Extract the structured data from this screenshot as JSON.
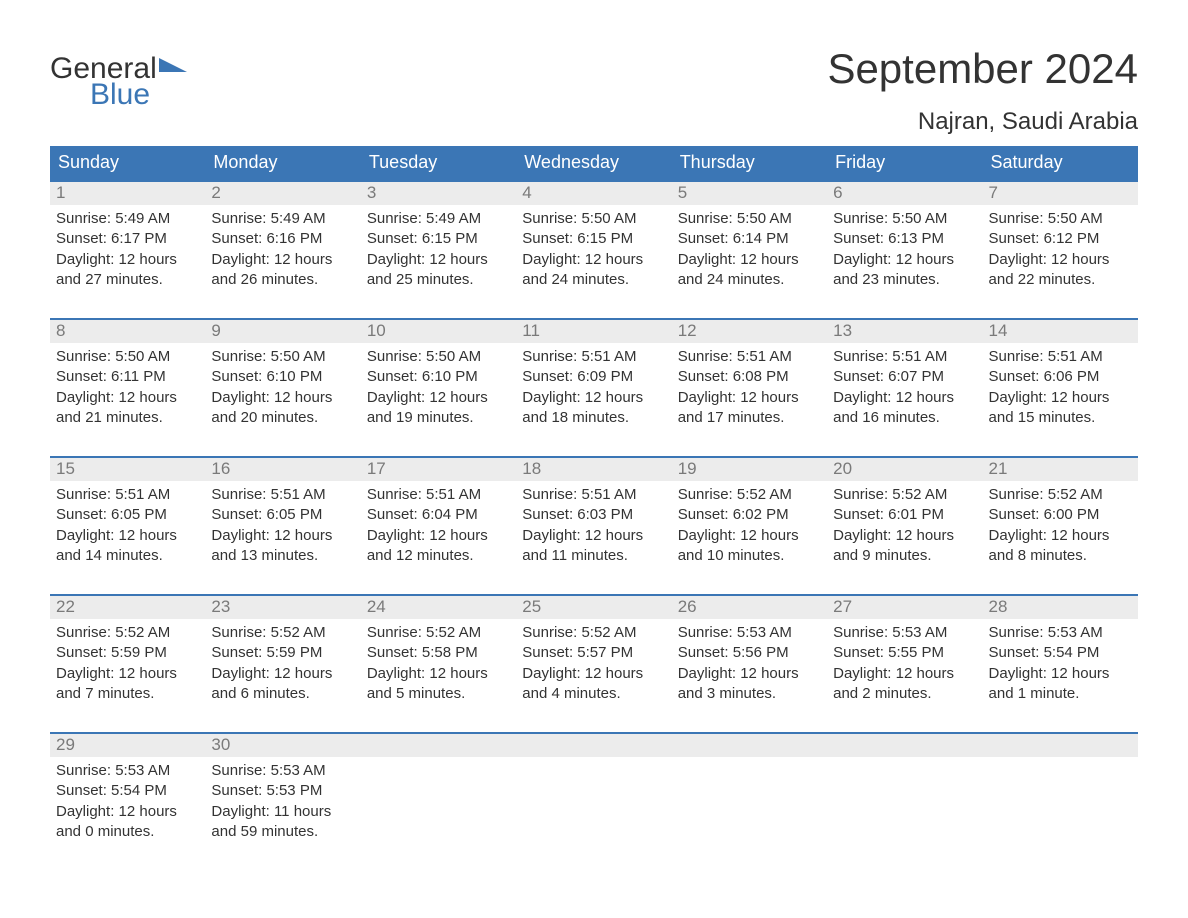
{
  "brand": {
    "word1": "General",
    "word2": "Blue",
    "accent_color": "#3b76b5"
  },
  "title": "September 2024",
  "subtitle": "Najran, Saudi Arabia",
  "colors": {
    "header_bg": "#3b76b5",
    "header_text": "#ffffff",
    "daynum_bg": "#ececec",
    "daynum_text": "#7a7a7a",
    "body_text": "#333333",
    "page_bg": "#ffffff",
    "week_border": "#3b76b5"
  },
  "layout": {
    "columns": 7,
    "rows": 5,
    "first_weekday": "Sunday"
  },
  "dow": [
    "Sunday",
    "Monday",
    "Tuesday",
    "Wednesday",
    "Thursday",
    "Friday",
    "Saturday"
  ],
  "days": [
    {
      "n": "1",
      "sunrise": "Sunrise: 5:49 AM",
      "sunset": "Sunset: 6:17 PM",
      "dl1": "Daylight: 12 hours",
      "dl2": "and 27 minutes."
    },
    {
      "n": "2",
      "sunrise": "Sunrise: 5:49 AM",
      "sunset": "Sunset: 6:16 PM",
      "dl1": "Daylight: 12 hours",
      "dl2": "and 26 minutes."
    },
    {
      "n": "3",
      "sunrise": "Sunrise: 5:49 AM",
      "sunset": "Sunset: 6:15 PM",
      "dl1": "Daylight: 12 hours",
      "dl2": "and 25 minutes."
    },
    {
      "n": "4",
      "sunrise": "Sunrise: 5:50 AM",
      "sunset": "Sunset: 6:15 PM",
      "dl1": "Daylight: 12 hours",
      "dl2": "and 24 minutes."
    },
    {
      "n": "5",
      "sunrise": "Sunrise: 5:50 AM",
      "sunset": "Sunset: 6:14 PM",
      "dl1": "Daylight: 12 hours",
      "dl2": "and 24 minutes."
    },
    {
      "n": "6",
      "sunrise": "Sunrise: 5:50 AM",
      "sunset": "Sunset: 6:13 PM",
      "dl1": "Daylight: 12 hours",
      "dl2": "and 23 minutes."
    },
    {
      "n": "7",
      "sunrise": "Sunrise: 5:50 AM",
      "sunset": "Sunset: 6:12 PM",
      "dl1": "Daylight: 12 hours",
      "dl2": "and 22 minutes."
    },
    {
      "n": "8",
      "sunrise": "Sunrise: 5:50 AM",
      "sunset": "Sunset: 6:11 PM",
      "dl1": "Daylight: 12 hours",
      "dl2": "and 21 minutes."
    },
    {
      "n": "9",
      "sunrise": "Sunrise: 5:50 AM",
      "sunset": "Sunset: 6:10 PM",
      "dl1": "Daylight: 12 hours",
      "dl2": "and 20 minutes."
    },
    {
      "n": "10",
      "sunrise": "Sunrise: 5:50 AM",
      "sunset": "Sunset: 6:10 PM",
      "dl1": "Daylight: 12 hours",
      "dl2": "and 19 minutes."
    },
    {
      "n": "11",
      "sunrise": "Sunrise: 5:51 AM",
      "sunset": "Sunset: 6:09 PM",
      "dl1": "Daylight: 12 hours",
      "dl2": "and 18 minutes."
    },
    {
      "n": "12",
      "sunrise": "Sunrise: 5:51 AM",
      "sunset": "Sunset: 6:08 PM",
      "dl1": "Daylight: 12 hours",
      "dl2": "and 17 minutes."
    },
    {
      "n": "13",
      "sunrise": "Sunrise: 5:51 AM",
      "sunset": "Sunset: 6:07 PM",
      "dl1": "Daylight: 12 hours",
      "dl2": "and 16 minutes."
    },
    {
      "n": "14",
      "sunrise": "Sunrise: 5:51 AM",
      "sunset": "Sunset: 6:06 PM",
      "dl1": "Daylight: 12 hours",
      "dl2": "and 15 minutes."
    },
    {
      "n": "15",
      "sunrise": "Sunrise: 5:51 AM",
      "sunset": "Sunset: 6:05 PM",
      "dl1": "Daylight: 12 hours",
      "dl2": "and 14 minutes."
    },
    {
      "n": "16",
      "sunrise": "Sunrise: 5:51 AM",
      "sunset": "Sunset: 6:05 PM",
      "dl1": "Daylight: 12 hours",
      "dl2": "and 13 minutes."
    },
    {
      "n": "17",
      "sunrise": "Sunrise: 5:51 AM",
      "sunset": "Sunset: 6:04 PM",
      "dl1": "Daylight: 12 hours",
      "dl2": "and 12 minutes."
    },
    {
      "n": "18",
      "sunrise": "Sunrise: 5:51 AM",
      "sunset": "Sunset: 6:03 PM",
      "dl1": "Daylight: 12 hours",
      "dl2": "and 11 minutes."
    },
    {
      "n": "19",
      "sunrise": "Sunrise: 5:52 AM",
      "sunset": "Sunset: 6:02 PM",
      "dl1": "Daylight: 12 hours",
      "dl2": "and 10 minutes."
    },
    {
      "n": "20",
      "sunrise": "Sunrise: 5:52 AM",
      "sunset": "Sunset: 6:01 PM",
      "dl1": "Daylight: 12 hours",
      "dl2": "and 9 minutes."
    },
    {
      "n": "21",
      "sunrise": "Sunrise: 5:52 AM",
      "sunset": "Sunset: 6:00 PM",
      "dl1": "Daylight: 12 hours",
      "dl2": "and 8 minutes."
    },
    {
      "n": "22",
      "sunrise": "Sunrise: 5:52 AM",
      "sunset": "Sunset: 5:59 PM",
      "dl1": "Daylight: 12 hours",
      "dl2": "and 7 minutes."
    },
    {
      "n": "23",
      "sunrise": "Sunrise: 5:52 AM",
      "sunset": "Sunset: 5:59 PM",
      "dl1": "Daylight: 12 hours",
      "dl2": "and 6 minutes."
    },
    {
      "n": "24",
      "sunrise": "Sunrise: 5:52 AM",
      "sunset": "Sunset: 5:58 PM",
      "dl1": "Daylight: 12 hours",
      "dl2": "and 5 minutes."
    },
    {
      "n": "25",
      "sunrise": "Sunrise: 5:52 AM",
      "sunset": "Sunset: 5:57 PM",
      "dl1": "Daylight: 12 hours",
      "dl2": "and 4 minutes."
    },
    {
      "n": "26",
      "sunrise": "Sunrise: 5:53 AM",
      "sunset": "Sunset: 5:56 PM",
      "dl1": "Daylight: 12 hours",
      "dl2": "and 3 minutes."
    },
    {
      "n": "27",
      "sunrise": "Sunrise: 5:53 AM",
      "sunset": "Sunset: 5:55 PM",
      "dl1": "Daylight: 12 hours",
      "dl2": "and 2 minutes."
    },
    {
      "n": "28",
      "sunrise": "Sunrise: 5:53 AM",
      "sunset": "Sunset: 5:54 PM",
      "dl1": "Daylight: 12 hours",
      "dl2": "and 1 minute."
    },
    {
      "n": "29",
      "sunrise": "Sunrise: 5:53 AM",
      "sunset": "Sunset: 5:54 PM",
      "dl1": "Daylight: 12 hours",
      "dl2": "and 0 minutes."
    },
    {
      "n": "30",
      "sunrise": "Sunrise: 5:53 AM",
      "sunset": "Sunset: 5:53 PM",
      "dl1": "Daylight: 11 hours",
      "dl2": "and 59 minutes."
    }
  ]
}
